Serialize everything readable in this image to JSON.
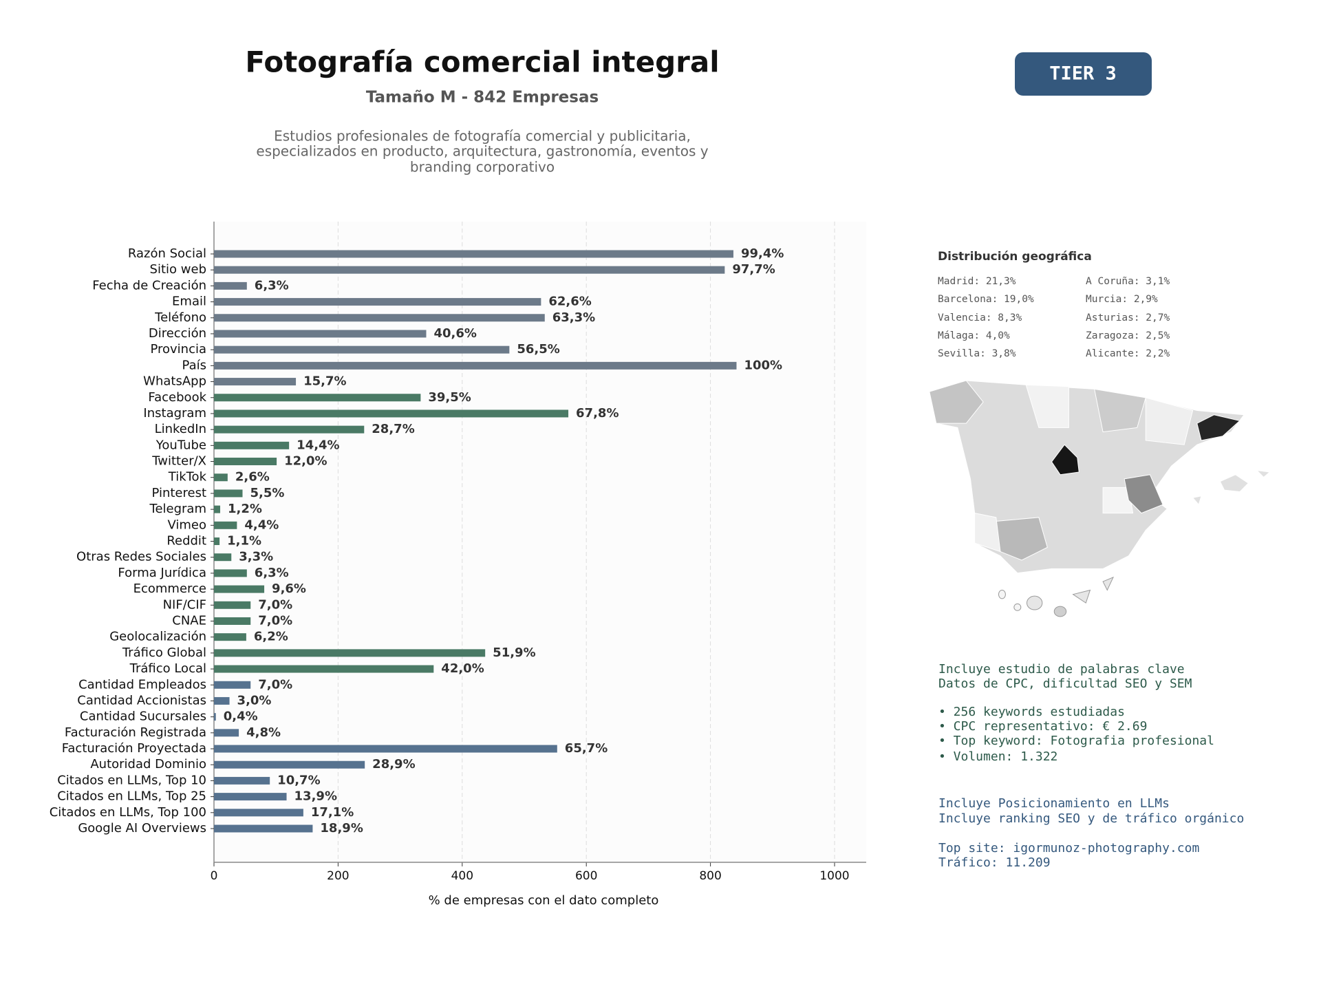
{
  "header": {
    "title": "Fotografía comercial integral",
    "subtitle": "Tamaño M - 842 Empresas",
    "description": [
      "Estudios profesionales de fotografía comercial y publicitaria,",
      "especializados en producto, arquitectura, gastronomía, eventos y",
      "branding corporativo"
    ]
  },
  "badge": "TIER 3",
  "geo": {
    "title": "Distribución geográfica",
    "items": [
      "Madrid: 21,3%",
      "Barcelona: 19,0%",
      "Valencia: 8,3%",
      "Málaga: 4,0%",
      "Sevilla: 3,8%",
      "A Coruña: 3,1%",
      "Murcia: 2,9%",
      "Asturias: 2,7%",
      "Zaragoza: 2,5%",
      "Alicante: 2,2%"
    ]
  },
  "keywords": [
    "Incluye estudio de palabras clave",
    "Datos de CPC, dificultad SEO y SEM",
    "• 256 keywords estudiadas",
    "• CPC representativo: € 2.69",
    "• Top keyword: Fotografia profesional",
    "• Volumen: 1.322"
  ],
  "llm": [
    "Incluye Posicionamiento en LLMs",
    "Incluye ranking SEO y de tráfico orgánico",
    "Top site: igormunoz-photography.com",
    "Tráfico: 11.209"
  ],
  "chart_data": {
    "type": "hbar",
    "x_label": "% de empresas con el dato completo",
    "categories": [
      "Razón Social",
      "Sitio web",
      "Fecha de Creación",
      "Email",
      "Teléfono",
      "Dirección",
      "Provincia",
      "País",
      "WhatsApp",
      "Facebook",
      "Instagram",
      "LinkedIn",
      "YouTube",
      "Twitter/X",
      "TikTok",
      "Pinterest",
      "Telegram",
      "Vimeo",
      "Reddit",
      "Otras Redes Sociales",
      "Forma Jurídica",
      "Ecommerce",
      "NIF/CIF",
      "CNAE",
      "Geolocalización",
      "Tráfico Global",
      "Tráfico Local",
      "Cantidad Empleados",
      "Cantidad Accionistas",
      "Cantidad Sucursales",
      "Facturación Registrada",
      "Facturación Proyectada",
      "Autoridad Dominio",
      "Citados en LLMs, Top 10",
      "Citados en LLMs, Top 25",
      "Citados en LLMs, Top 100",
      "Google AI Overviews"
    ],
    "values": [
      837,
      823,
      53,
      527,
      533,
      342,
      476,
      842,
      132,
      333,
      571,
      242,
      121,
      101,
      22,
      46,
      10,
      37,
      9,
      28,
      53,
      81,
      59,
      59,
      52,
      437,
      354,
      59,
      25,
      3,
      40,
      553,
      243,
      90,
      117,
      144,
      159
    ],
    "value_labels": [
      "99,4%",
      "97,7%",
      "6,3%",
      "62,6%",
      "63,3%",
      "40,6%",
      "56,5%",
      "100%",
      "15,7%",
      "39,5%",
      "67,8%",
      "28,7%",
      "14,4%",
      "12,0%",
      "2,6%",
      "5,5%",
      "1,2%",
      "4,4%",
      "1,1%",
      "3,3%",
      "6,3%",
      "9,6%",
      "7,0%",
      "7,0%",
      "6,2%",
      "51,9%",
      "42,0%",
      "7,0%",
      "3,0%",
      "0,4%",
      "4,8%",
      "65,7%",
      "28,9%",
      "10,7%",
      "13,9%",
      "17,1%",
      "18,9%"
    ],
    "colors": [
      "#6c7a89",
      "#6c7a89",
      "#6c7a89",
      "#6c7a89",
      "#6c7a89",
      "#6c7a89",
      "#6c7a89",
      "#6c7a89",
      "#6c7a89",
      "#4a7a65",
      "#4a7a65",
      "#4a7a65",
      "#4a7a65",
      "#4a7a65",
      "#4a7a65",
      "#4a7a65",
      "#4a7a65",
      "#4a7a65",
      "#4a7a65",
      "#4a7a65",
      "#4a7a65",
      "#4a7a65",
      "#4a7a65",
      "#4a7a65",
      "#4a7a65",
      "#4a7a65",
      "#4a7a65",
      "#56728f",
      "#56728f",
      "#56728f",
      "#56728f",
      "#56728f",
      "#56728f",
      "#56728f",
      "#56728f",
      "#56728f",
      "#56728f"
    ],
    "xlim": [
      0,
      1051
    ],
    "xticks": [
      0,
      200,
      400,
      600,
      800,
      1000
    ],
    "grid": true
  }
}
